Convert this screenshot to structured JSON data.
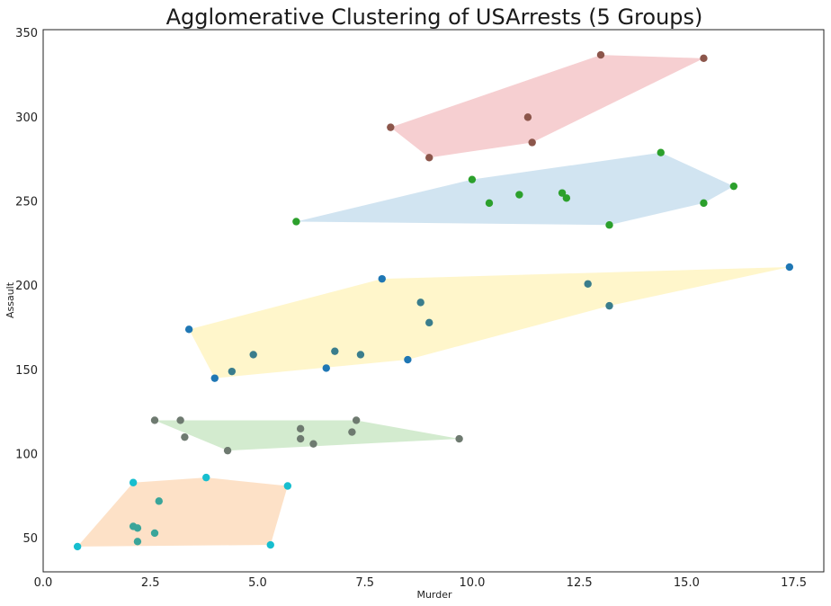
{
  "chart_data": {
    "type": "scatter",
    "title": "Agglomerative Clustering of USArrests (5 Groups)",
    "xlabel": "Murder",
    "ylabel": "Assault",
    "xlim": [
      0.0,
      18.2
    ],
    "ylim": [
      30,
      352
    ],
    "x_ticks": [
      0.0,
      2.5,
      5.0,
      7.5,
      10.0,
      12.5,
      15.0,
      17.5
    ],
    "x_tick_labels": [
      "0.0",
      "2.5",
      "5.0",
      "7.5",
      "10.0",
      "12.5",
      "15.0",
      "17.5"
    ],
    "y_ticks": [
      50,
      100,
      150,
      200,
      250,
      300,
      350
    ],
    "y_tick_labels": [
      "50",
      "100",
      "150",
      "200",
      "250",
      "300",
      "350"
    ],
    "grid": false,
    "point_colors": [
      "#1f77b4",
      "#ff7f0e",
      "#2ca02c",
      "#d62728",
      "#9467bd",
      "#8c564b",
      "#e377c2",
      "#7f7f7f",
      "#bcbd22",
      "#17becf"
    ],
    "hull_fills": [
      "#f4c7c9",
      "#c9dfee",
      "#fff4c2",
      "#cbe7c7",
      "#fddcbd"
    ],
    "clusters": [
      {
        "hull_fill": "#f4c7c9",
        "hull": [
          [
            8.1,
            294
          ],
          [
            13.0,
            337
          ],
          [
            15.4,
            335
          ],
          [
            11.4,
            285
          ],
          [
            9.0,
            276
          ]
        ],
        "points": [
          {
            "x": 8.1,
            "y": 294,
            "color": "#8c564b"
          },
          {
            "x": 13.0,
            "y": 337,
            "color": "#8c564b"
          },
          {
            "x": 15.4,
            "y": 335,
            "color": "#8c564b"
          },
          {
            "x": 11.3,
            "y": 300,
            "color": "#8c564b"
          },
          {
            "x": 11.4,
            "y": 285,
            "color": "#8c564b"
          },
          {
            "x": 9.0,
            "y": 276,
            "color": "#8c564b"
          }
        ]
      },
      {
        "hull_fill": "#c9dfee",
        "hull": [
          [
            5.9,
            238
          ],
          [
            10.0,
            263
          ],
          [
            14.4,
            279
          ],
          [
            16.1,
            259
          ],
          [
            15.4,
            249
          ],
          [
            13.2,
            236
          ]
        ],
        "points": [
          {
            "x": 5.9,
            "y": 238,
            "color": "#2ca02c"
          },
          {
            "x": 10.0,
            "y": 263,
            "color": "#2ca02c"
          },
          {
            "x": 10.4,
            "y": 249,
            "color": "#2ca02c"
          },
          {
            "x": 11.1,
            "y": 254,
            "color": "#2ca02c"
          },
          {
            "x": 12.1,
            "y": 255,
            "color": "#2ca02c"
          },
          {
            "x": 12.2,
            "y": 252,
            "color": "#2ca02c"
          },
          {
            "x": 14.4,
            "y": 279,
            "color": "#2ca02c"
          },
          {
            "x": 16.1,
            "y": 259,
            "color": "#2ca02c"
          },
          {
            "x": 15.4,
            "y": 249,
            "color": "#2ca02c"
          },
          {
            "x": 13.2,
            "y": 236,
            "color": "#2ca02c"
          }
        ]
      },
      {
        "hull_fill": "#fff4c2",
        "hull": [
          [
            3.4,
            174
          ],
          [
            7.9,
            204
          ],
          [
            17.4,
            211
          ],
          [
            13.2,
            188
          ],
          [
            8.5,
            156
          ],
          [
            4.0,
            145
          ]
        ],
        "points": [
          {
            "x": 3.4,
            "y": 174,
            "color": "#1f77b4"
          },
          {
            "x": 7.9,
            "y": 204,
            "color": "#1f77b4"
          },
          {
            "x": 17.4,
            "y": 211,
            "color": "#1f77b4"
          },
          {
            "x": 12.7,
            "y": 201,
            "color": "#3a7d8c"
          },
          {
            "x": 13.2,
            "y": 188,
            "color": "#3a7d8c"
          },
          {
            "x": 8.8,
            "y": 190,
            "color": "#3a7d8c"
          },
          {
            "x": 9.0,
            "y": 178,
            "color": "#3a7d8c"
          },
          {
            "x": 4.9,
            "y": 159,
            "color": "#3a7d8c"
          },
          {
            "x": 6.8,
            "y": 161,
            "color": "#3a7d8c"
          },
          {
            "x": 7.4,
            "y": 159,
            "color": "#3a7d8c"
          },
          {
            "x": 6.6,
            "y": 151,
            "color": "#1f77b4"
          },
          {
            "x": 8.5,
            "y": 156,
            "color": "#1f77b4"
          },
          {
            "x": 4.4,
            "y": 149,
            "color": "#3a7d8c"
          },
          {
            "x": 4.0,
            "y": 145,
            "color": "#1f77b4"
          }
        ]
      },
      {
        "hull_fill": "#cbe7c7",
        "hull": [
          [
            2.6,
            120
          ],
          [
            7.3,
            120
          ],
          [
            9.7,
            109
          ],
          [
            4.3,
            102
          ]
        ],
        "points": [
          {
            "x": 2.6,
            "y": 120,
            "color": "#6e7a70"
          },
          {
            "x": 3.2,
            "y": 120,
            "color": "#6e7a70"
          },
          {
            "x": 3.3,
            "y": 110,
            "color": "#6e7a70"
          },
          {
            "x": 4.3,
            "y": 102,
            "color": "#6e7a70"
          },
          {
            "x": 6.0,
            "y": 115,
            "color": "#6e7a70"
          },
          {
            "x": 6.0,
            "y": 109,
            "color": "#6e7a70"
          },
          {
            "x": 6.3,
            "y": 106,
            "color": "#6e7a70"
          },
          {
            "x": 7.2,
            "y": 113,
            "color": "#6e7a70"
          },
          {
            "x": 7.3,
            "y": 120,
            "color": "#6e7a70"
          },
          {
            "x": 9.7,
            "y": 109,
            "color": "#6e7a70"
          }
        ]
      },
      {
        "hull_fill": "#fddcbd",
        "hull": [
          [
            0.8,
            45
          ],
          [
            2.1,
            83
          ],
          [
            3.8,
            86
          ],
          [
            5.7,
            81
          ],
          [
            5.3,
            46
          ]
        ],
        "points": [
          {
            "x": 0.8,
            "y": 45,
            "color": "#17becf"
          },
          {
            "x": 2.1,
            "y": 83,
            "color": "#17becf"
          },
          {
            "x": 3.8,
            "y": 86,
            "color": "#17becf"
          },
          {
            "x": 5.7,
            "y": 81,
            "color": "#17becf"
          },
          {
            "x": 5.3,
            "y": 46,
            "color": "#17becf"
          },
          {
            "x": 2.7,
            "y": 72,
            "color": "#3aa59a"
          },
          {
            "x": 2.1,
            "y": 57,
            "color": "#3aa59a"
          },
          {
            "x": 2.2,
            "y": 56,
            "color": "#3aa59a"
          },
          {
            "x": 2.6,
            "y": 53,
            "color": "#3aa59a"
          },
          {
            "x": 2.2,
            "y": 48,
            "color": "#3aa59a"
          }
        ]
      }
    ]
  }
}
